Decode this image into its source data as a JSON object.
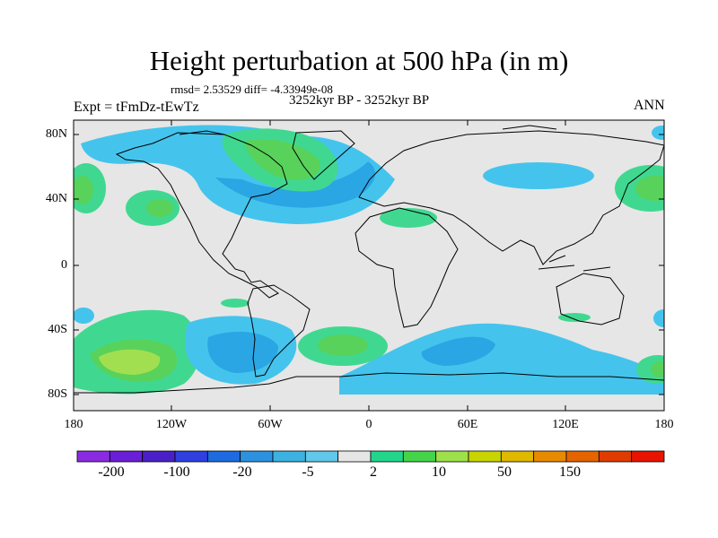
{
  "title": "Height perturbation at 500 hPa (in m)",
  "stats": "rmsd= 2.53529 diff= -4.33949e-08",
  "subtitle": "3252kyr BP - 3252kyr BP",
  "expt_label": "Expt = tFmDz-tEwTz",
  "season": "ANN",
  "lat_labels": [
    "80N",
    "40N",
    "0",
    "40S",
    "80S"
  ],
  "lon_labels": [
    "180",
    "120W",
    "60W",
    "0",
    "60E",
    "120E",
    "180"
  ],
  "colorbar": {
    "colors": [
      "#8a2be2",
      "#6a1fd6",
      "#4b1fc8",
      "#2f3fe0",
      "#1e6be0",
      "#2c92e0",
      "#3cb2e0",
      "#60c8e8",
      "#e6e6e6",
      "#22d58a",
      "#44d44a",
      "#9ee04a",
      "#c8d400",
      "#dfb800",
      "#e68a00",
      "#e56400",
      "#e03c00",
      "#e81400"
    ],
    "labels": [
      "-200",
      "-100",
      "-20",
      "-5",
      "2",
      "10",
      "50",
      "150"
    ]
  },
  "colors": {
    "background": "#e6e6e6",
    "light_blue": "#44c4ec",
    "medium_blue": "#2aa6e4",
    "light_green": "#40d890",
    "green": "#58d25a",
    "yellow_green": "#a2df50"
  }
}
